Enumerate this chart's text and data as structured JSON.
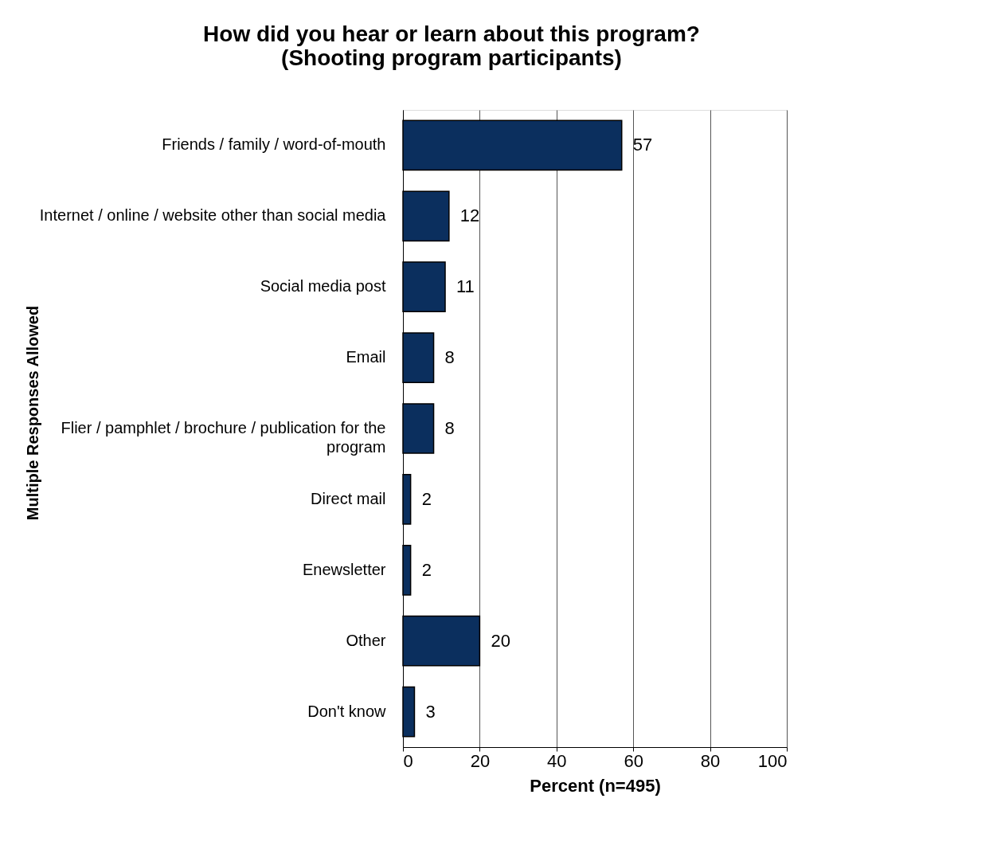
{
  "chart_data": {
    "type": "bar",
    "orientation": "horizontal",
    "title": "How did you hear or learn about this program? (Shooting program participants)",
    "xlabel": "Percent (n=495)",
    "ylabel": "Multiple Responses Allowed",
    "categories": [
      "Friends / family / word-of-mouth",
      "Internet / online / website other than social media",
      "Social media post",
      "Email",
      "Flier / pamphlet / brochure / publication for the program",
      "Direct mail",
      "Enewsletter",
      "Other",
      "Don't know"
    ],
    "values": [
      57,
      12,
      11,
      8,
      8,
      2,
      2,
      20,
      3
    ],
    "color": "#0b2f5e",
    "xlim": [
      0,
      100
    ],
    "xticks": [
      0,
      20,
      40,
      60,
      80,
      100
    ],
    "grid": "x",
    "data_labels": true
  }
}
